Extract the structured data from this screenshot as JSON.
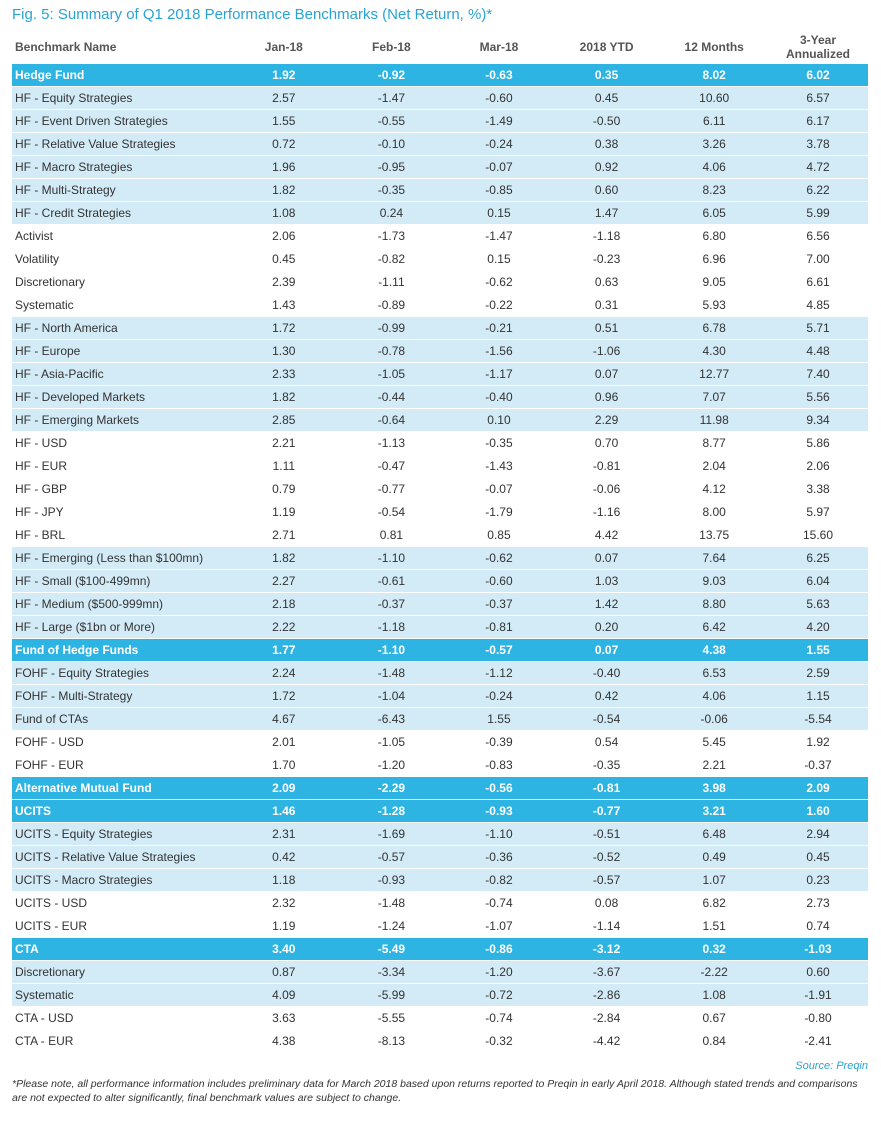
{
  "title": "Fig. 5: Summary of Q1 2018 Performance Benchmarks (Net Return, %)*",
  "columns": [
    "Benchmark Name",
    "Jan-18",
    "Feb-18",
    "Mar-18",
    "2018 YTD",
    "12 Months",
    "3-Year Annualized"
  ],
  "colors": {
    "header_row": "#2db4e2",
    "light_row": "#d2ebf7",
    "title": "#2aa3d3"
  },
  "rows": [
    {
      "style": "h",
      "name": "Hedge Fund",
      "values": [
        "1.92",
        "-0.92",
        "-0.63",
        "0.35",
        "8.02",
        "6.02"
      ]
    },
    {
      "style": "l",
      "name": "HF - Equity Strategies",
      "values": [
        "2.57",
        "-1.47",
        "-0.60",
        "0.45",
        "10.60",
        "6.57"
      ]
    },
    {
      "style": "l",
      "name": "HF - Event Driven Strategies",
      "values": [
        "1.55",
        "-0.55",
        "-1.49",
        "-0.50",
        "6.11",
        "6.17"
      ]
    },
    {
      "style": "l",
      "name": "HF - Relative Value Strategies",
      "values": [
        "0.72",
        "-0.10",
        "-0.24",
        "0.38",
        "3.26",
        "3.78"
      ]
    },
    {
      "style": "l",
      "name": "HF - Macro Strategies",
      "values": [
        "1.96",
        "-0.95",
        "-0.07",
        "0.92",
        "4.06",
        "4.72"
      ]
    },
    {
      "style": "l",
      "name": "HF - Multi-Strategy",
      "values": [
        "1.82",
        "-0.35",
        "-0.85",
        "0.60",
        "8.23",
        "6.22"
      ]
    },
    {
      "style": "l",
      "name": "HF - Credit Strategies",
      "values": [
        "1.08",
        "0.24",
        "0.15",
        "1.47",
        "6.05",
        "5.99"
      ]
    },
    {
      "style": "w",
      "name": "Activist",
      "values": [
        "2.06",
        "-1.73",
        "-1.47",
        "-1.18",
        "6.80",
        "6.56"
      ]
    },
    {
      "style": "w",
      "name": "Volatility",
      "values": [
        "0.45",
        "-0.82",
        "0.15",
        "-0.23",
        "6.96",
        "7.00"
      ]
    },
    {
      "style": "w",
      "name": "Discretionary",
      "values": [
        "2.39",
        "-1.11",
        "-0.62",
        "0.63",
        "9.05",
        "6.61"
      ]
    },
    {
      "style": "w",
      "name": "Systematic",
      "values": [
        "1.43",
        "-0.89",
        "-0.22",
        "0.31",
        "5.93",
        "4.85"
      ]
    },
    {
      "style": "l",
      "name": "HF - North America",
      "values": [
        "1.72",
        "-0.99",
        "-0.21",
        "0.51",
        "6.78",
        "5.71"
      ]
    },
    {
      "style": "l",
      "name": "HF - Europe",
      "values": [
        "1.30",
        "-0.78",
        "-1.56",
        "-1.06",
        "4.30",
        "4.48"
      ]
    },
    {
      "style": "l",
      "name": "HF - Asia-Pacific",
      "values": [
        "2.33",
        "-1.05",
        "-1.17",
        "0.07",
        "12.77",
        "7.40"
      ]
    },
    {
      "style": "l",
      "name": "HF - Developed Markets",
      "values": [
        "1.82",
        "-0.44",
        "-0.40",
        "0.96",
        "7.07",
        "5.56"
      ]
    },
    {
      "style": "l",
      "name": "HF - Emerging Markets",
      "values": [
        "2.85",
        "-0.64",
        "0.10",
        "2.29",
        "11.98",
        "9.34"
      ]
    },
    {
      "style": "w",
      "name": "HF - USD",
      "values": [
        "2.21",
        "-1.13",
        "-0.35",
        "0.70",
        "8.77",
        "5.86"
      ]
    },
    {
      "style": "w",
      "name": "HF - EUR",
      "values": [
        "1.11",
        "-0.47",
        "-1.43",
        "-0.81",
        "2.04",
        "2.06"
      ]
    },
    {
      "style": "w",
      "name": "HF - GBP",
      "values": [
        "0.79",
        "-0.77",
        "-0.07",
        "-0.06",
        "4.12",
        "3.38"
      ]
    },
    {
      "style": "w",
      "name": "HF - JPY",
      "values": [
        "1.19",
        "-0.54",
        "-1.79",
        "-1.16",
        "8.00",
        "5.97"
      ]
    },
    {
      "style": "w",
      "name": "HF - BRL",
      "values": [
        "2.71",
        "0.81",
        "0.85",
        "4.42",
        "13.75",
        "15.60"
      ]
    },
    {
      "style": "l",
      "name": "HF - Emerging (Less than $100mn)",
      "values": [
        "1.82",
        "-1.10",
        "-0.62",
        "0.07",
        "7.64",
        "6.25"
      ]
    },
    {
      "style": "l",
      "name": "HF - Small ($100-499mn)",
      "values": [
        "2.27",
        "-0.61",
        "-0.60",
        "1.03",
        "9.03",
        "6.04"
      ]
    },
    {
      "style": "l",
      "name": "HF - Medium ($500-999mn)",
      "values": [
        "2.18",
        "-0.37",
        "-0.37",
        "1.42",
        "8.80",
        "5.63"
      ]
    },
    {
      "style": "l",
      "name": "HF - Large ($1bn or More)",
      "values": [
        "2.22",
        "-1.18",
        "-0.81",
        "0.20",
        "6.42",
        "4.20"
      ]
    },
    {
      "style": "h",
      "name": "Fund of Hedge Funds",
      "values": [
        "1.77",
        "-1.10",
        "-0.57",
        "0.07",
        "4.38",
        "1.55"
      ]
    },
    {
      "style": "l",
      "name": "FOHF - Equity Strategies",
      "values": [
        "2.24",
        "-1.48",
        "-1.12",
        "-0.40",
        "6.53",
        "2.59"
      ]
    },
    {
      "style": "l",
      "name": "FOHF - Multi-Strategy",
      "values": [
        "1.72",
        "-1.04",
        "-0.24",
        "0.42",
        "4.06",
        "1.15"
      ]
    },
    {
      "style": "l",
      "name": "Fund of CTAs",
      "values": [
        "4.67",
        "-6.43",
        "1.55",
        "-0.54",
        "-0.06",
        "-5.54"
      ]
    },
    {
      "style": "w",
      "name": "FOHF - USD",
      "values": [
        "2.01",
        "-1.05",
        "-0.39",
        "0.54",
        "5.45",
        "1.92"
      ]
    },
    {
      "style": "w",
      "name": "FOHF - EUR",
      "values": [
        "1.70",
        "-1.20",
        "-0.83",
        "-0.35",
        "2.21",
        "-0.37"
      ]
    },
    {
      "style": "h",
      "name": "Alternative Mutual Fund",
      "values": [
        "2.09",
        "-2.29",
        "-0.56",
        "-0.81",
        "3.98",
        "2.09"
      ]
    },
    {
      "style": "h",
      "name": "UCITS",
      "values": [
        "1.46",
        "-1.28",
        "-0.93",
        "-0.77",
        "3.21",
        "1.60"
      ]
    },
    {
      "style": "l",
      "name": "UCITS - Equity Strategies",
      "values": [
        "2.31",
        "-1.69",
        "-1.10",
        "-0.51",
        "6.48",
        "2.94"
      ]
    },
    {
      "style": "l",
      "name": "UCITS - Relative Value Strategies",
      "values": [
        "0.42",
        "-0.57",
        "-0.36",
        "-0.52",
        "0.49",
        "0.45"
      ]
    },
    {
      "style": "l",
      "name": "UCITS - Macro Strategies",
      "values": [
        "1.18",
        "-0.93",
        "-0.82",
        "-0.57",
        "1.07",
        "0.23"
      ]
    },
    {
      "style": "w",
      "name": "UCITS - USD",
      "values": [
        "2.32",
        "-1.48",
        "-0.74",
        "0.08",
        "6.82",
        "2.73"
      ]
    },
    {
      "style": "w",
      "name": "UCITS - EUR",
      "values": [
        "1.19",
        "-1.24",
        "-1.07",
        "-1.14",
        "1.51",
        "0.74"
      ]
    },
    {
      "style": "h",
      "name": "CTA",
      "values": [
        "3.40",
        "-5.49",
        "-0.86",
        "-3.12",
        "0.32",
        "-1.03"
      ]
    },
    {
      "style": "l",
      "name": "Discretionary",
      "values": [
        "0.87",
        "-3.34",
        "-1.20",
        "-3.67",
        "-2.22",
        "0.60"
      ]
    },
    {
      "style": "l",
      "name": "Systematic",
      "values": [
        "4.09",
        "-5.99",
        "-0.72",
        "-2.86",
        "1.08",
        "-1.91"
      ]
    },
    {
      "style": "w",
      "name": "CTA - USD",
      "values": [
        "3.63",
        "-5.55",
        "-0.74",
        "-2.84",
        "0.67",
        "-0.80"
      ]
    },
    {
      "style": "w",
      "name": "CTA - EUR",
      "values": [
        "4.38",
        "-8.13",
        "-0.32",
        "-4.42",
        "0.84",
        "-2.41"
      ]
    }
  ],
  "source": "Source: Preqin",
  "note": "*Please note, all performance information includes preliminary data for March 2018 based upon returns reported to Preqin in early April 2018. Although stated trends and comparisons are not expected to alter significantly, final benchmark values are subject to change."
}
